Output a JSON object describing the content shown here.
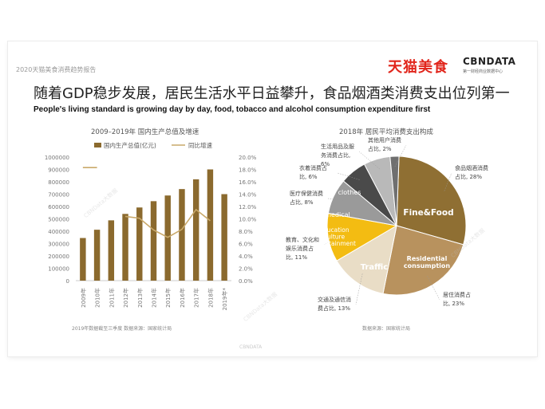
{
  "header": {
    "report_title": "2020天猫美食消费趋势报告",
    "brand_tmall": "天猫美食",
    "brand_cbn": "CBNDATA",
    "brand_cbn_sub": "第一财经商业数据中心"
  },
  "title_cn": "随着GDP稳步发展，居民生活水平日益攀升，食品烟酒类消费支出位列第一",
  "title_en": "People's living standard is growing day by day, food, tobacco and alcohol consumption expenditure first",
  "footer_text": "CBNDATA",
  "watermark": "CBNData大数据",
  "chart_data": [
    {
      "type": "bar",
      "title": "2009–2019年 国内生产总值及增速",
      "legend_position": "top",
      "categories": [
        "2009年",
        "2010年",
        "2011年",
        "2012年",
        "2013年",
        "2014年",
        "2015年",
        "2016年",
        "2017年",
        "2018年",
        "2019年*"
      ],
      "ylim": [
        0,
        1000000
      ],
      "y_ticks": [
        0,
        100000,
        200000,
        300000,
        400000,
        500000,
        600000,
        700000,
        800000,
        900000,
        1000000
      ],
      "y2lim": [
        0,
        20
      ],
      "y2_ticks": [
        "0.0%",
        "2.0%",
        "4.0%",
        "6.0%",
        "8.0%",
        "10.0%",
        "12.0%",
        "14.0%",
        "16.0%",
        "18.0%",
        "20.0%"
      ],
      "series": [
        {
          "name": "国内生产总值(亿元)",
          "kind": "bar",
          "color": "#8b6a2e",
          "values": [
            345000,
            412000,
            488000,
            540000,
            592000,
            643000,
            689000,
            741000,
            820000,
            900000,
            700000
          ]
        },
        {
          "name": "同比增速",
          "kind": "line",
          "axis": "right",
          "color": "#c9a96a",
          "values": [
            18.3,
            18.3,
            null,
            10.4,
            10.1,
            8.2,
            7.0,
            8.3,
            11.5,
            9.7,
            null
          ]
        }
      ],
      "source": "2019年数据截至三季度    数据来源：国家统计局"
    },
    {
      "type": "pie",
      "title": "2018年 居民平均消费支出构成",
      "slices": [
        {
          "label": "食品烟酒消费占比, 28%",
          "value": 28,
          "inner_label": "Fine&Food",
          "color": "#8f6f33"
        },
        {
          "label": "居住消费占比, 23%",
          "value": 23,
          "inner_label": "Residential consumption",
          "color": "#b8925e"
        },
        {
          "label": "交通及通信消费占比, 13%",
          "value": 13,
          "inner_label": "Traffic",
          "color": "#e9ddc6"
        },
        {
          "label": "教育、文化和娱乐消费占比, 11%",
          "value": 11,
          "inner_label": "education culture entertainment",
          "color": "#f3bc12"
        },
        {
          "label": "医疗保健消费占比, 8%",
          "value": 8,
          "inner_label": "medical",
          "color": "#9a9a9a"
        },
        {
          "label": "衣着消费占比, 6%",
          "value": 6,
          "inner_label": "clothes",
          "color": "#4a4a4a"
        },
        {
          "label": "生活用品及服务消费占比, 6%",
          "value": 6,
          "inner_label": "",
          "color": "#b9b9b9"
        },
        {
          "label": "其他用户消费占比, 2%",
          "value": 2,
          "inner_label": "",
          "color": "#6f6f6f"
        }
      ],
      "source": "数据来源：国家统计局"
    }
  ]
}
